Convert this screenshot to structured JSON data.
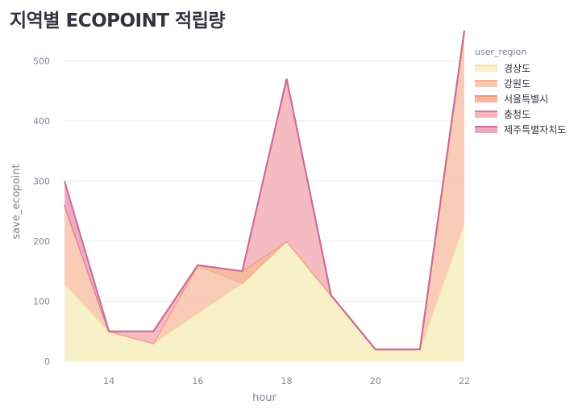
{
  "title": "지역별 ECOPOINT 적립량",
  "chart_data": {
    "type": "area",
    "stacked": true,
    "xlabel": "hour",
    "ylabel": "save_ecopoint",
    "x": [
      13,
      14,
      15,
      16,
      17,
      18,
      19,
      20,
      21,
      22
    ],
    "xlim": [
      13,
      22
    ],
    "ylim": [
      0,
      550
    ],
    "x_ticks": [
      14,
      16,
      18,
      20,
      22
    ],
    "y_ticks": [
      0,
      100,
      200,
      300,
      400,
      500
    ],
    "grid": true,
    "legend_title": "user_region",
    "legend_position": "right",
    "series": [
      {
        "name": "경상도",
        "values": [
          130,
          50,
          30,
          80,
          130,
          200,
          110,
          20,
          20,
          230
        ],
        "fill": "#f7efc6",
        "stroke": "#f5e3a0"
      },
      {
        "name": "강원도",
        "values": [
          130,
          0,
          0,
          80,
          0,
          0,
          0,
          0,
          0,
          320
        ],
        "fill": "#f8c9b2",
        "stroke": "#f5b38a"
      },
      {
        "name": "서울특별시",
        "values": [
          0,
          0,
          0,
          0,
          20,
          0,
          0,
          0,
          0,
          0
        ],
        "fill": "#f6b59c",
        "stroke": "#ef9a79"
      },
      {
        "name": "충청도",
        "values": [
          0,
          0,
          20,
          0,
          0,
          270,
          0,
          0,
          0,
          0
        ],
        "fill": "#f4b7bf",
        "stroke": "#e07a8c"
      },
      {
        "name": "제주특별자치도",
        "values": [
          40,
          0,
          0,
          0,
          0,
          0,
          0,
          0,
          0,
          0
        ],
        "fill": "#e9a7c2",
        "stroke": "#cc6b96"
      }
    ]
  }
}
